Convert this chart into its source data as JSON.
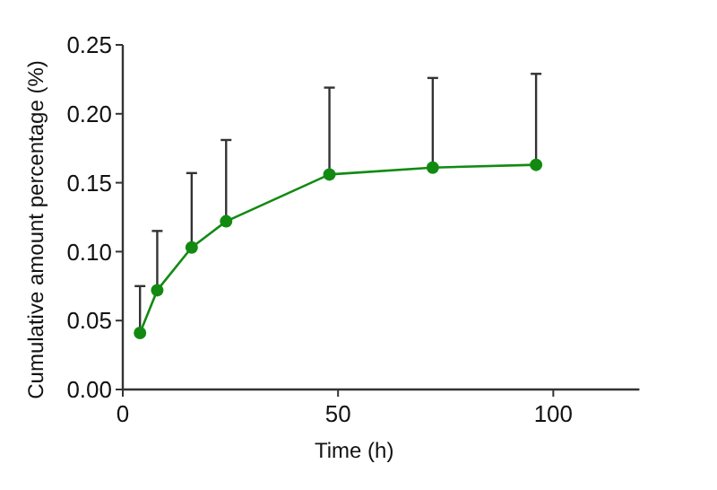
{
  "chart_data": {
    "type": "line",
    "xlabel": "Time (h)",
    "ylabel": "Cumulative amount percentage (%)",
    "x": [
      4,
      8,
      16,
      24,
      48,
      72,
      96
    ],
    "series": [
      {
        "color": "#128a12",
        "values": [
          0.041,
          0.072,
          0.103,
          0.122,
          0.156,
          0.161,
          0.163
        ],
        "errors": [
          [
            0.041,
            0.075
          ],
          [
            0.072,
            0.115
          ],
          [
            0.103,
            0.157
          ],
          [
            0.122,
            0.181
          ],
          [
            0.156,
            0.219
          ],
          [
            0.161,
            0.226
          ],
          [
            0.163,
            0.229
          ]
        ]
      }
    ],
    "xlim": [
      0,
      120
    ],
    "xticks": [
      0,
      50,
      100
    ],
    "ylim": [
      0,
      0.25
    ],
    "yticks": [
      {
        "value": 0,
        "label": "0.00"
      },
      {
        "value": 0.05,
        "label": "0.05"
      },
      {
        "value": 0.1,
        "label": "0.10"
      },
      {
        "value": 0.15,
        "label": "0.15"
      },
      {
        "value": 0.2,
        "label": "0.20"
      },
      {
        "value": 0.25,
        "label": "0.25"
      }
    ],
    "marker": "circle"
  }
}
